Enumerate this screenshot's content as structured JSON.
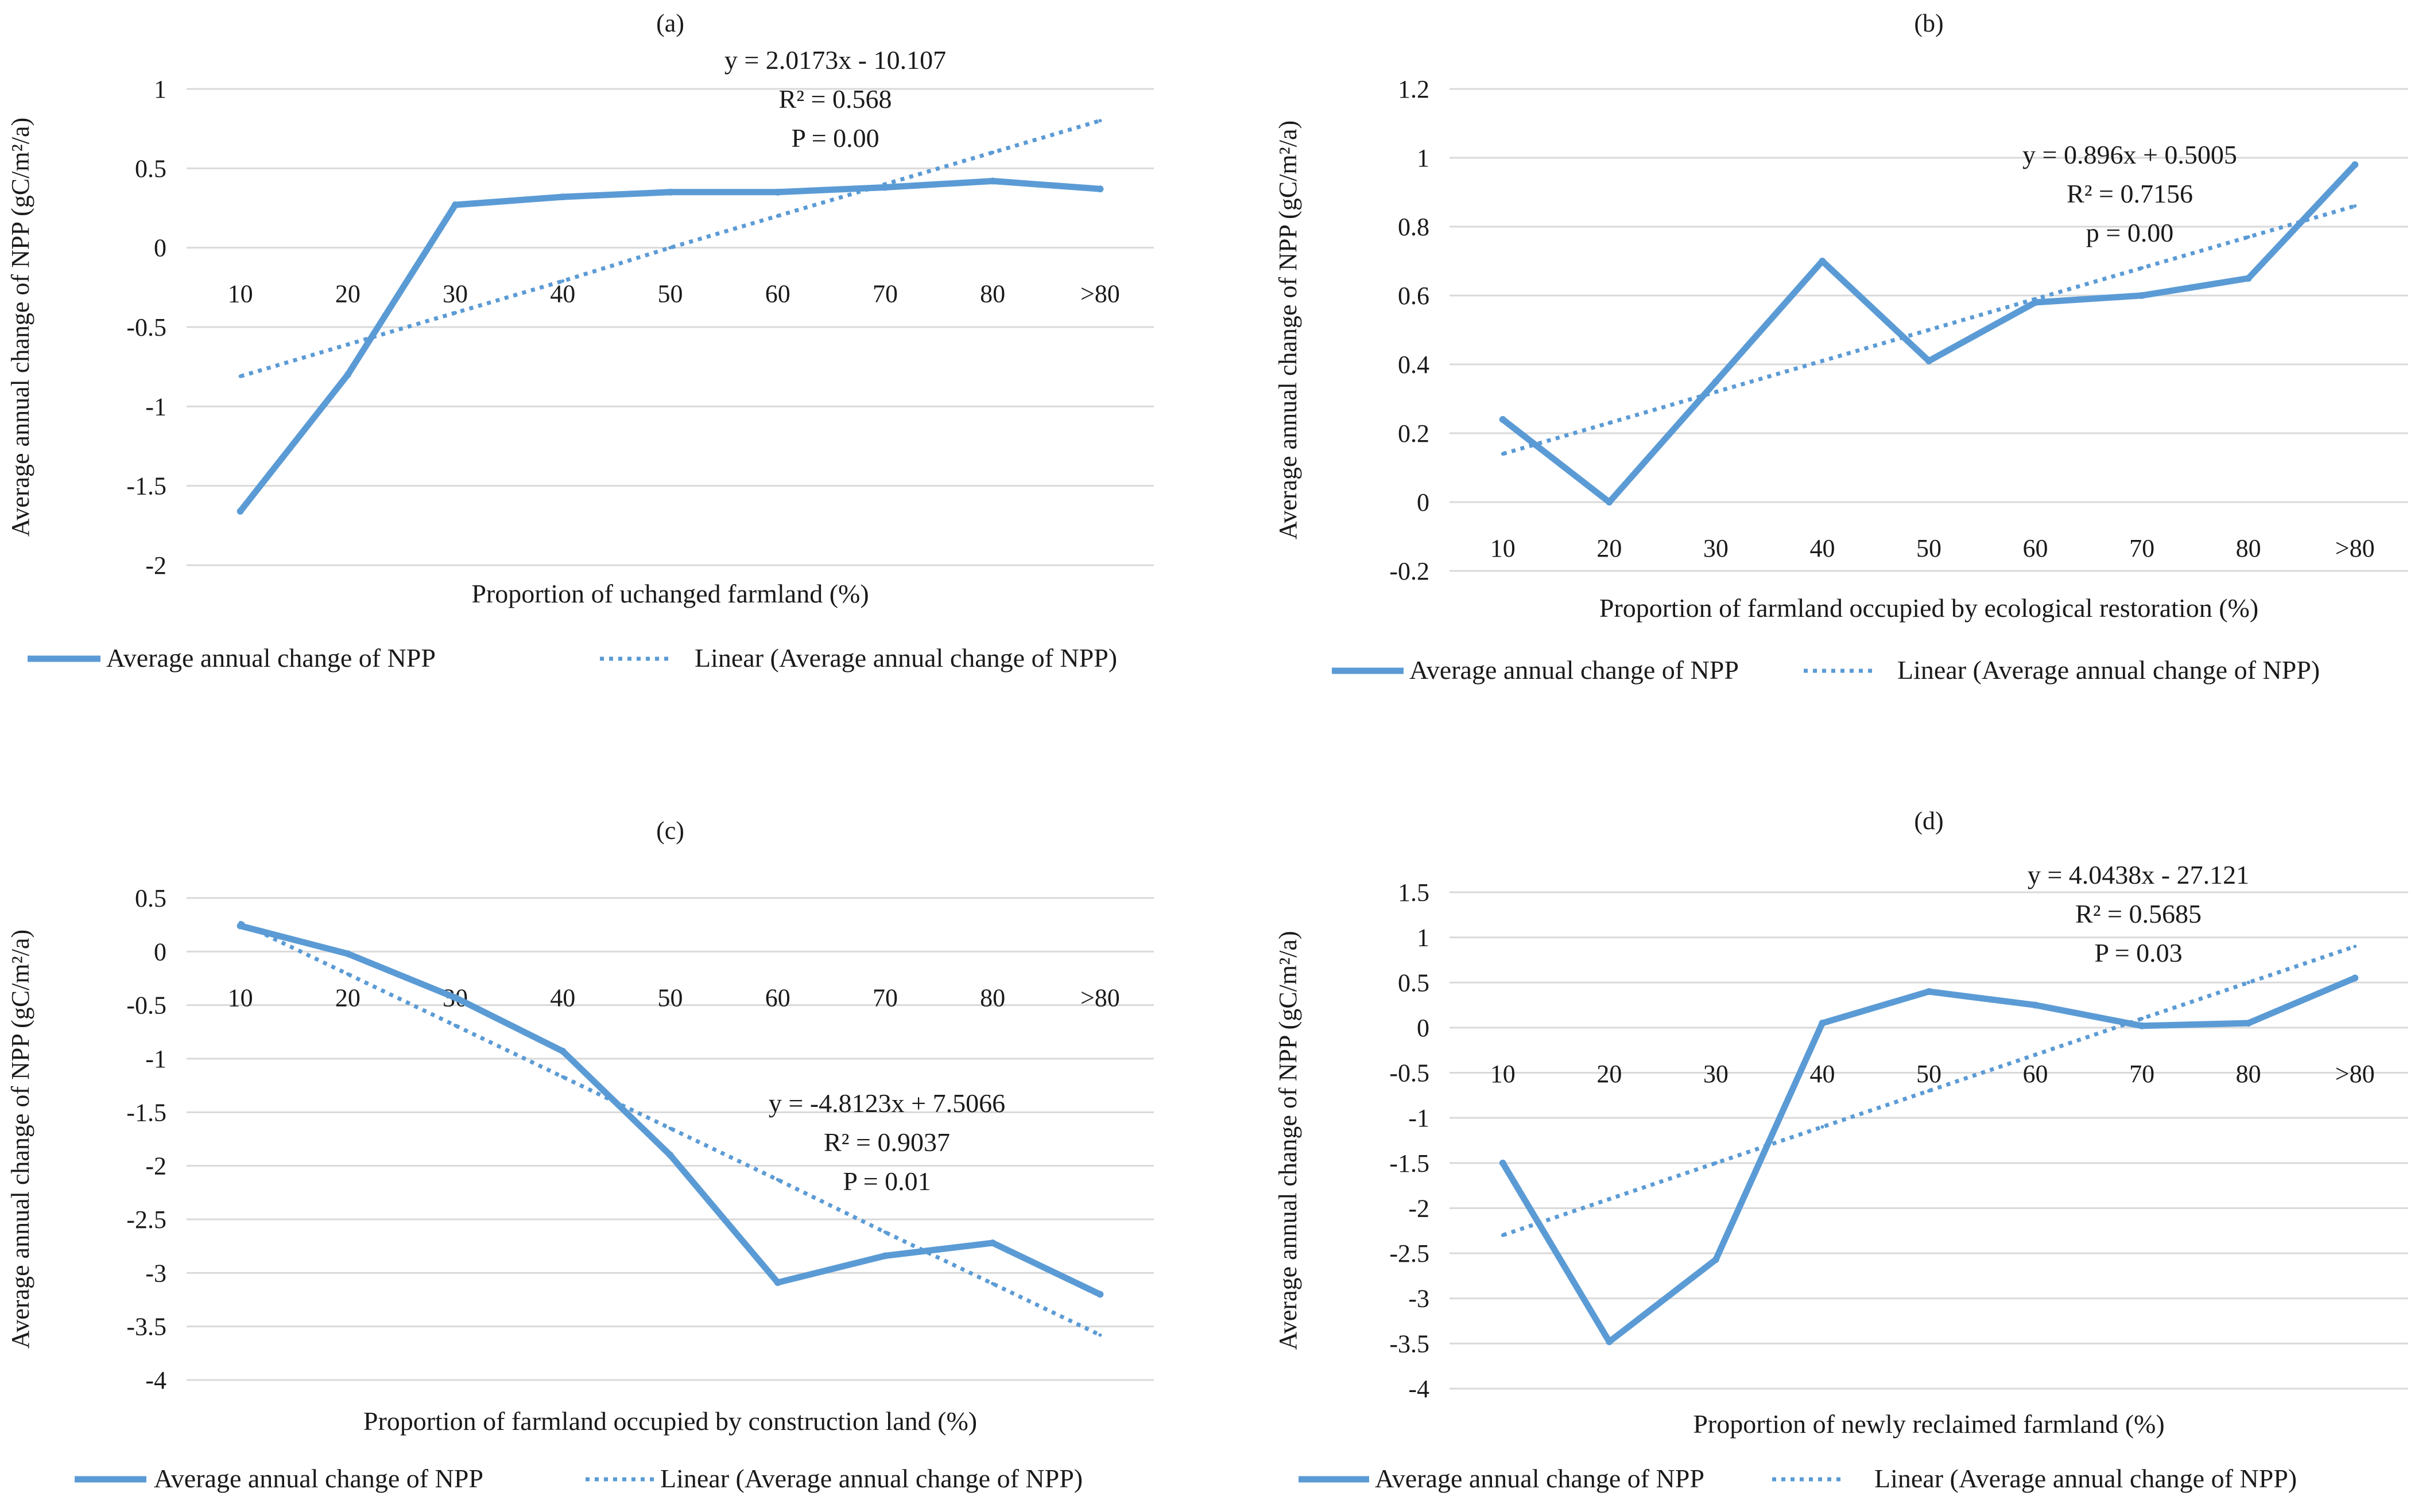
{
  "chart_data": [
    {
      "id": "a",
      "type": "line",
      "panel_label": "(a)",
      "categories": [
        "10",
        "20",
        "30",
        "40",
        "50",
        "60",
        "70",
        "80",
        ">80"
      ],
      "series": [
        {
          "name": "Average annual change of NPP",
          "values": [
            -1.66,
            -0.8,
            0.27,
            0.32,
            0.35,
            0.35,
            0.38,
            0.42,
            0.37
          ]
        },
        {
          "name": "Linear (Average annual change of NPP)",
          "style": "dotted",
          "values": [
            -0.81,
            -0.61,
            -0.41,
            -0.21,
            0.0,
            0.2,
            0.4,
            0.6,
            0.8
          ]
        }
      ],
      "ylabel": "Average annual change of NPP (gC/m²/a)",
      "xlabel": "Proportion of uchanged farmland (%)",
      "ylim": [
        -2,
        1
      ],
      "yticks": [
        1,
        0.5,
        0,
        -0.5,
        -1,
        -1.5,
        -2
      ],
      "ytick_labels": [
        "1",
        "0.5",
        "0",
        "-0.5",
        "-1",
        "-1.5",
        "-2"
      ],
      "grid": true,
      "annotation": [
        "y = 2.0173x - 10.107",
        "R² = 0.568",
        "P = 0.00"
      ],
      "legend": [
        "Average annual change of NPP",
        "Linear (Average annual change of NPP)"
      ]
    },
    {
      "id": "b",
      "type": "line",
      "panel_label": "(b)",
      "categories": [
        "10",
        "20",
        "30",
        "40",
        "50",
        "60",
        "70",
        "80",
        ">80"
      ],
      "series": [
        {
          "name": "Average annual change of NPP",
          "values": [
            0.24,
            0.0,
            0.35,
            0.7,
            0.41,
            0.58,
            0.6,
            0.65,
            0.98
          ]
        },
        {
          "name": "Linear (Average annual change of NPP)",
          "style": "dotted",
          "values": [
            0.14,
            0.23,
            0.32,
            0.41,
            0.5,
            0.59,
            0.68,
            0.77,
            0.86
          ]
        }
      ],
      "ylabel": "Average annual change of NPP (gC/m²/a)",
      "xlabel": "Proportion of farmland occupied by ecological restoration (%)",
      "ylim": [
        -0.2,
        1.2
      ],
      "yticks": [
        1.2,
        1,
        0.8,
        0.6,
        0.4,
        0.2,
        0,
        -0.2
      ],
      "ytick_labels": [
        "1.2",
        "1",
        "0.8",
        "0.6",
        "0.4",
        "0.2",
        "0",
        "-0.2"
      ],
      "grid": true,
      "annotation": [
        "y = 0.896x + 0.5005",
        "R² = 0.7156",
        "p = 0.00"
      ],
      "legend": [
        "Average annual change of NPP",
        "Linear (Average annual change of NPP)"
      ]
    },
    {
      "id": "c",
      "type": "line",
      "panel_label": "(c)",
      "categories": [
        "10",
        "20",
        "30",
        "40",
        "50",
        "60",
        "70",
        "80",
        ">80"
      ],
      "series": [
        {
          "name": "Average annual change of NPP",
          "values": [
            0.24,
            -0.02,
            -0.43,
            -0.93,
            -1.9,
            -3.09,
            -2.84,
            -2.72,
            -3.2
          ]
        },
        {
          "name": "Linear (Average annual change of NPP)",
          "style": "dotted",
          "values": [
            0.27,
            -0.21,
            -0.69,
            -1.17,
            -1.65,
            -2.13,
            -2.62,
            -3.1,
            -3.58
          ]
        }
      ],
      "ylabel": "Average annual change of NPP (gC/m²/a)",
      "xlabel": "Proportion of farmland occupied by construction land (%)",
      "ylim": [
        -4,
        0.5
      ],
      "yticks": [
        0.5,
        0,
        -0.5,
        -1,
        -1.5,
        -2,
        -2.5,
        -3,
        -3.5,
        -4
      ],
      "ytick_labels": [
        "0.5",
        "0",
        "-0.5",
        "-1",
        "-1.5",
        "-2",
        "-2.5",
        "-3",
        "-3.5",
        "-4"
      ],
      "grid": true,
      "annotation": [
        "y = -4.8123x + 7.5066",
        "R² = 0.9037",
        "P = 0.01"
      ],
      "legend": [
        "Average annual change of NPP",
        "Linear (Average annual change of NPP)"
      ]
    },
    {
      "id": "d",
      "type": "line",
      "panel_label": "(d)",
      "categories": [
        "10",
        "20",
        "30",
        "40",
        "50",
        "60",
        "70",
        "80",
        ">80"
      ],
      "series": [
        {
          "name": "Average annual change of NPP",
          "values": [
            -1.5,
            -3.48,
            -2.57,
            0.05,
            0.4,
            0.25,
            0.02,
            0.05,
            0.55
          ]
        },
        {
          "name": "Linear (Average annual change of NPP)",
          "style": "dotted",
          "values": [
            -2.3,
            -1.9,
            -1.5,
            -1.1,
            -0.7,
            -0.3,
            0.1,
            0.5,
            0.9
          ]
        }
      ],
      "ylabel": "Average annual change of NPP (gC/m²/a)",
      "xlabel": "Proportion of newly reclaimed farmland (%)",
      "ylim": [
        -4,
        1.5
      ],
      "yticks": [
        1.5,
        1,
        0.5,
        0,
        -0.5,
        -1,
        -1.5,
        -2,
        -2.5,
        -3,
        -3.5,
        -4
      ],
      "ytick_labels": [
        "1.5",
        "1",
        "0.5",
        "0",
        "-0.5",
        "-1",
        "-1.5",
        "-2",
        "-2.5",
        "-3",
        "-3.5",
        "-4"
      ],
      "grid": true,
      "annotation": [
        "y = 4.0438x - 27.121",
        "R² = 0.5685",
        "P = 0.03"
      ],
      "legend": [
        "Average annual change of NPP",
        "Linear (Average annual change of NPP)"
      ]
    }
  ],
  "colors": {
    "series_line": "#5b9bd5",
    "gridline": "#d9d9d9",
    "text": "#1a1a1a"
  }
}
